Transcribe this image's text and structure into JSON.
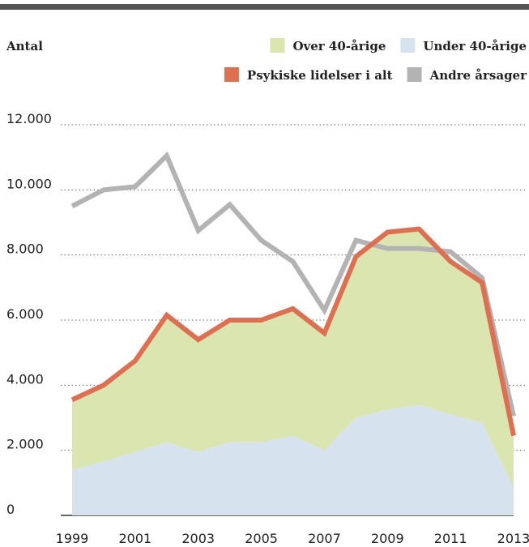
{
  "chart_data": {
    "type": "stacked-area-line",
    "y_label": "Antal",
    "x": [
      1999,
      2000,
      2001,
      2002,
      2003,
      2004,
      2005,
      2006,
      2007,
      2008,
      2009,
      2010,
      2011,
      2012,
      2013
    ],
    "xlim": [
      1999,
      2013
    ],
    "xticks": [
      1999,
      2001,
      2003,
      2005,
      2007,
      2009,
      2011,
      2013
    ],
    "ylim": [
      0,
      12000
    ],
    "yticks": [
      0,
      {
        "value": 2000,
        "label": "2.000"
      },
      {
        "value": 4000,
        "label": "4.000"
      },
      {
        "value": 6000,
        "label": "6.000"
      },
      {
        "value": 8000,
        "label": "8.000"
      },
      {
        "value": 10000,
        "label": "10.000"
      },
      {
        "value": 12000,
        "label": "12.000"
      }
    ],
    "grid": true,
    "legend": "top-right",
    "series": [
      {
        "name": "Over 40-årige",
        "color": "#dbe5b0",
        "style": "area",
        "stack": "under",
        "values": [
          2150,
          2350,
          2800,
          3900,
          3450,
          3750,
          3750,
          3900,
          3600,
          4950,
          5450,
          5400,
          4700,
          4300,
          1600
        ]
      },
      {
        "name": "Under 40-årige",
        "color": "#d6e3ee",
        "style": "area",
        "values": [
          1400,
          1650,
          1950,
          2250,
          1950,
          2250,
          2250,
          2450,
          2000,
          3000,
          3250,
          3400,
          3100,
          2850,
          850
        ]
      },
      {
        "name": "Psykiske lidelser i alt",
        "color": "#de6f50",
        "style": "line",
        "values": [
          3550,
          4000,
          4750,
          6150,
          5400,
          6000,
          6000,
          6350,
          5600,
          7950,
          8700,
          8800,
          7800,
          7150,
          2450
        ]
      },
      {
        "name": "Andre årsager",
        "color": "#b3b3b3",
        "style": "line",
        "values": [
          9500,
          10000,
          10100,
          11050,
          8750,
          9550,
          8450,
          7800,
          6300,
          8450,
          8200,
          8200,
          8100,
          7300,
          3050
        ]
      }
    ]
  }
}
